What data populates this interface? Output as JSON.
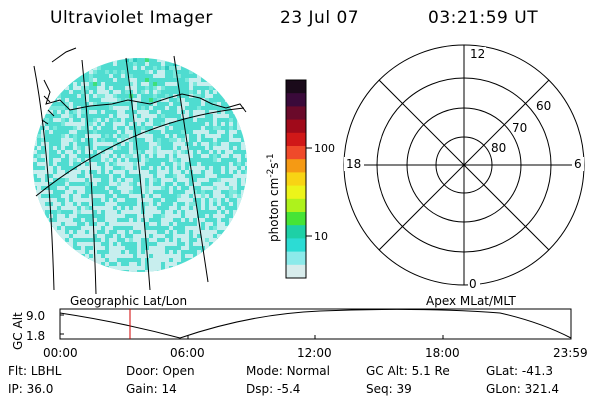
{
  "header": {
    "title": "Ultraviolet Imager",
    "date": "23 Jul 07",
    "time": "03:21:59 UT"
  },
  "colorbar": {
    "unit_label": "photon cm",
    "unit_sup1": "-2",
    "unit_mid": "s",
    "unit_sup2": "-1",
    "ticks": [
      "100",
      "10"
    ],
    "colors": [
      "#1a0a1a",
      "#3a0a3a",
      "#6a0a2a",
      "#a00a1a",
      "#d01818",
      "#ef4a2a",
      "#f59a14",
      "#f8d414",
      "#ecf41a",
      "#aef21c",
      "#46e436",
      "#1ed0a6",
      "#2cdcd4",
      "#8ceaea",
      "#d8ecec"
    ]
  },
  "polar": {
    "mlt_labels": {
      "top": "12",
      "left": "18",
      "right": "6",
      "bottom": "0"
    },
    "lat_labels": [
      "60",
      "70",
      "80"
    ]
  },
  "labels": {
    "geo": "Geographic Lat/Lon",
    "apex": "Apex MLat/MLT",
    "gc_alt": "GC Alt"
  },
  "orbit": {
    "y_ticks": [
      "9.0",
      "1.8"
    ],
    "x_ticks": [
      "00:00",
      "06:00",
      "12:00",
      "18:00",
      "23:59"
    ]
  },
  "footer": {
    "row1": [
      {
        "label": "Flt:",
        "value": "LBHL"
      },
      {
        "label": "Door:",
        "value": "Open"
      },
      {
        "label": "Mode:",
        "value": "Normal"
      },
      {
        "label": "GC Alt:",
        "value": "5.1 Re"
      },
      {
        "label": "GLat:",
        "value": "-41.3"
      }
    ],
    "row2": [
      {
        "label": "IP:",
        "value": "36.0"
      },
      {
        "label": "Gain:",
        "value": "14"
      },
      {
        "label": "Dsp:",
        "value": "-5.4"
      },
      {
        "label": "Seq:",
        "value": "39"
      },
      {
        "label": "GLon:",
        "value": "321.4"
      }
    ]
  }
}
